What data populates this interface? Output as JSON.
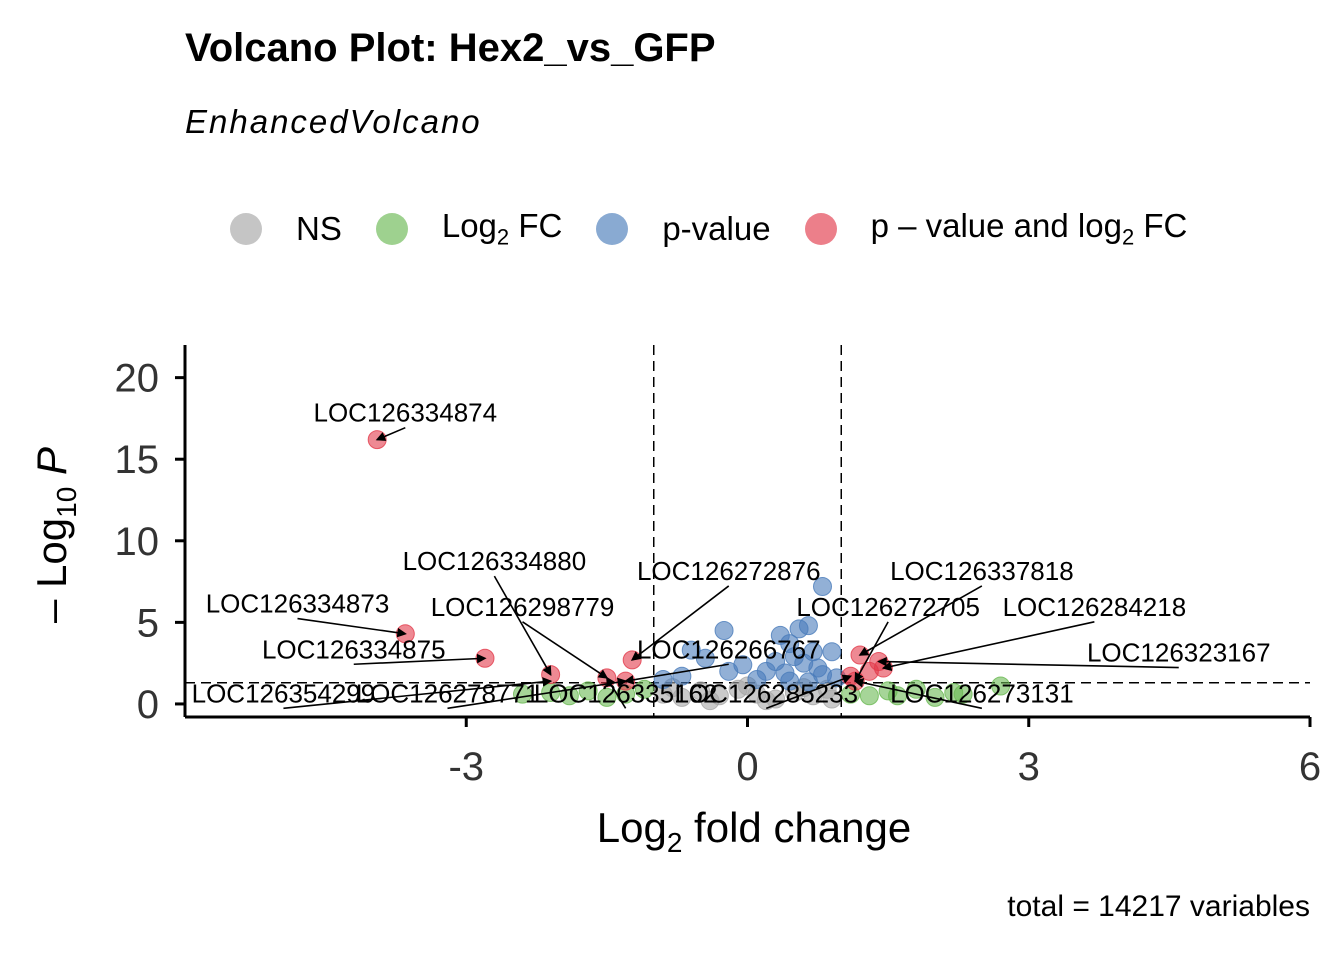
{
  "title": "Volcano Plot: Hex2_vs_GFP",
  "subtitle": "EnhancedVolcano",
  "caption": "total = 14217 variables",
  "legend": [
    {
      "label": "NS",
      "sub": "",
      "suffix": "",
      "color": "#a6a6a6"
    },
    {
      "label": "Log",
      "sub": "2",
      "suffix": " FC",
      "color": "#6ab953"
    },
    {
      "label": "p-value",
      "sub": "",
      "suffix": "",
      "color": "#4a7cba"
    },
    {
      "label": "p – value and log",
      "sub": "2",
      "suffix": " FC",
      "color": "#e23b4b"
    }
  ],
  "chart_data": {
    "type": "scatter",
    "xlabel": "Log2 fold change",
    "ylabel": "– Log10 P",
    "xlim": [
      -6,
      6
    ],
    "ylim": [
      -0.8,
      22
    ],
    "xticks": [
      -3,
      0,
      3,
      6
    ],
    "yticks": [
      0,
      5,
      10,
      15,
      20
    ],
    "fc_cutoff": 1,
    "p_cutoff_log10": 1.3,
    "grid": false,
    "legend_position": "top",
    "colors": {
      "NS": "#a6a6a6",
      "Log2 FC": "#6ab953",
      "p-value": "#4a7cba",
      "p - value and log2 FC": "#e23b4b"
    },
    "series": [
      {
        "name": "NS",
        "points": [
          [
            -0.9,
            0.6
          ],
          [
            -0.7,
            0.4
          ],
          [
            -0.5,
            0.8
          ],
          [
            -0.3,
            0.5
          ],
          [
            -0.1,
            0.9
          ],
          [
            0.1,
            0.6
          ],
          [
            0.3,
            0.3
          ],
          [
            0.5,
            0.7
          ],
          [
            0.7,
            0.5
          ],
          [
            0.85,
            0.9
          ],
          [
            -0.8,
            1.0
          ],
          [
            0.0,
            1.1
          ],
          [
            0.6,
            1.0
          ],
          [
            -0.4,
            0.2
          ],
          [
            0.2,
            0.2
          ],
          [
            0.9,
            0.3
          ]
        ]
      },
      {
        "name": "Log2 FC",
        "points": [
          [
            -2.4,
            0.6
          ],
          [
            -2.1,
            0.7
          ],
          [
            -1.9,
            0.5
          ],
          [
            -1.7,
            0.8
          ],
          [
            -1.5,
            0.4
          ],
          [
            -1.3,
            0.6
          ],
          [
            -1.1,
            0.9
          ],
          [
            1.1,
            0.6
          ],
          [
            1.3,
            0.5
          ],
          [
            1.5,
            0.8
          ],
          [
            1.6,
            0.5
          ],
          [
            1.8,
            0.9
          ],
          [
            2.0,
            0.4
          ],
          [
            2.2,
            0.7
          ],
          [
            2.3,
            0.6
          ],
          [
            2.7,
            1.1
          ]
        ]
      },
      {
        "name": "p-value",
        "points": [
          [
            0.8,
            7.2
          ],
          [
            -0.25,
            4.5
          ],
          [
            0.35,
            4.2
          ],
          [
            0.55,
            4.6
          ],
          [
            0.65,
            4.8
          ],
          [
            0.45,
            3.7
          ],
          [
            0.7,
            3.2
          ],
          [
            0.9,
            3.2
          ],
          [
            -0.6,
            3.3
          ],
          [
            -0.45,
            2.8
          ],
          [
            0.3,
            2.6
          ],
          [
            0.5,
            2.9
          ],
          [
            0.6,
            2.5
          ],
          [
            0.75,
            2.2
          ],
          [
            0.2,
            2.0
          ],
          [
            0.4,
            1.9
          ],
          [
            -0.2,
            2.0
          ],
          [
            -0.05,
            2.4
          ],
          [
            0.8,
            1.8
          ],
          [
            0.95,
            1.6
          ],
          [
            -0.7,
            1.7
          ],
          [
            -0.9,
            1.5
          ],
          [
            0.1,
            1.5
          ],
          [
            0.45,
            1.4
          ],
          [
            0.65,
            1.35
          ]
        ]
      },
      {
        "name": "p - value and log2 FC",
        "points": [
          [
            -3.95,
            16.2
          ],
          [
            -3.65,
            4.3
          ],
          [
            -2.8,
            2.8
          ],
          [
            -2.1,
            1.8
          ],
          [
            -1.5,
            1.6
          ],
          [
            -1.23,
            2.7
          ],
          [
            -1.3,
            1.4
          ],
          [
            1.2,
            3.0
          ],
          [
            1.4,
            2.6
          ],
          [
            1.45,
            2.2
          ],
          [
            1.1,
            1.7
          ],
          [
            1.15,
            1.4
          ],
          [
            1.3,
            2.0
          ]
        ]
      }
    ],
    "labels": [
      {
        "text": "LOC126334874",
        "x": -3.95,
        "y": 16.2,
        "lx": -3.65,
        "ly": 17.3
      },
      {
        "text": "LOC126334880",
        "x": -2.1,
        "y": 1.8,
        "lx": -2.7,
        "ly": 8.2
      },
      {
        "text": "LOC126272876",
        "x": -1.23,
        "y": 2.7,
        "lx": -0.2,
        "ly": 7.6
      },
      {
        "text": "LOC126337818",
        "x": 1.2,
        "y": 3.0,
        "lx": 2.5,
        "ly": 7.6
      },
      {
        "text": "LOC126334873",
        "x": -3.65,
        "y": 4.3,
        "lx": -4.8,
        "ly": 5.6
      },
      {
        "text": "LOC126298779",
        "x": -1.5,
        "y": 1.6,
        "lx": -2.4,
        "ly": 5.4
      },
      {
        "text": "LOC126272705",
        "x": 1.15,
        "y": 1.4,
        "lx": 1.5,
        "ly": 5.4
      },
      {
        "text": "LOC126284218",
        "x": 1.45,
        "y": 2.2,
        "lx": 3.7,
        "ly": 5.4
      },
      {
        "text": "LOC126334875",
        "x": -2.8,
        "y": 2.8,
        "lx": -4.2,
        "ly": 2.8
      },
      {
        "text": "LOC126266767",
        "x": -1.3,
        "y": 1.4,
        "lx": -0.2,
        "ly": 2.8
      },
      {
        "text": "LOC126323167",
        "x": 1.4,
        "y": 2.6,
        "lx": 4.6,
        "ly": 2.6
      },
      {
        "text": "LOC126354299",
        "x": -2.1,
        "y": 1.4,
        "lx": -4.95,
        "ly": 0.1
      },
      {
        "text": "LOC126278771",
        "x": -1.3,
        "y": 1.4,
        "lx": -3.2,
        "ly": 0.1
      },
      {
        "text": "LOC126335162",
        "x": -1.5,
        "y": 1.6,
        "lx": -1.3,
        "ly": 0.1
      },
      {
        "text": "LOC126285233",
        "x": 1.1,
        "y": 1.7,
        "lx": 0.2,
        "ly": 0.1
      },
      {
        "text": "LOC126273131",
        "x": 1.15,
        "y": 1.4,
        "lx": 2.5,
        "ly": 0.1
      }
    ]
  }
}
